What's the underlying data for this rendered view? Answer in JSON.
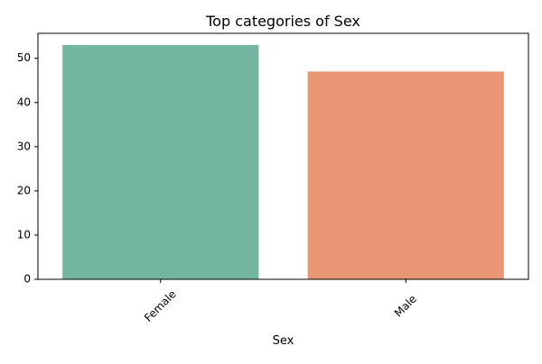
{
  "chart_data": {
    "type": "bar",
    "title": "Top categories of Sex",
    "xlabel": "Sex",
    "ylabel": "",
    "categories": [
      "Female",
      "Male"
    ],
    "values": [
      53,
      47
    ],
    "colors": [
      "#72b6a1",
      "#e99675"
    ],
    "ylim": [
      0,
      55.65
    ],
    "yticks": [
      0,
      10,
      20,
      30,
      40,
      50
    ],
    "grid": false,
    "legend": "none"
  }
}
